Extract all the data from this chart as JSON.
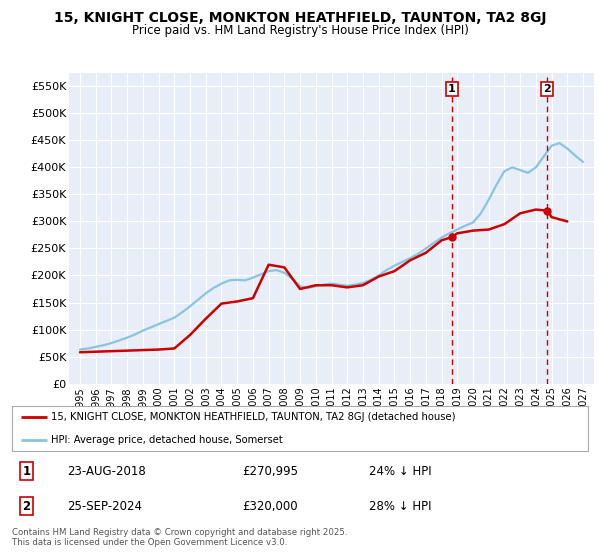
{
  "title": "15, KNIGHT CLOSE, MONKTON HEATHFIELD, TAUNTON, TA2 8GJ",
  "subtitle": "Price paid vs. HM Land Registry's House Price Index (HPI)",
  "ylim": [
    0,
    575000
  ],
  "yticks": [
    0,
    50000,
    100000,
    150000,
    200000,
    250000,
    300000,
    350000,
    400000,
    450000,
    500000,
    550000
  ],
  "ytick_labels": [
    "£0",
    "£50K",
    "£100K",
    "£150K",
    "£200K",
    "£250K",
    "£300K",
    "£350K",
    "£400K",
    "£450K",
    "£500K",
    "£550K"
  ],
  "hpi_color": "#89c4e1",
  "price_color": "#cc0000",
  "vline_color": "#cc0000",
  "background_color": "#ffffff",
  "plot_bg_color": "#e8eef8",
  "grid_color": "#ffffff",
  "legend_entry1": "15, KNIGHT CLOSE, MONKTON HEATHFIELD, TAUNTON, TA2 8GJ (detached house)",
  "legend_entry2": "HPI: Average price, detached house, Somerset",
  "table_row1": [
    "1",
    "23-AUG-2018",
    "£270,995",
    "24% ↓ HPI"
  ],
  "table_row2": [
    "2",
    "25-SEP-2024",
    "£320,000",
    "28% ↓ HPI"
  ],
  "footer": "Contains HM Land Registry data © Crown copyright and database right 2025.\nThis data is licensed under the Open Government Licence v3.0.",
  "hpi_x": [
    1995,
    1995.5,
    1996,
    1996.5,
    1997,
    1997.5,
    1998,
    1998.5,
    1999,
    1999.5,
    2000,
    2000.5,
    2001,
    2001.5,
    2002,
    2002.5,
    2003,
    2003.5,
    2004,
    2004.5,
    2005,
    2005.5,
    2006,
    2006.5,
    2007,
    2007.5,
    2008,
    2008.5,
    2009,
    2009.5,
    2010,
    2010.5,
    2011,
    2011.5,
    2012,
    2012.5,
    2013,
    2013.5,
    2014,
    2014.5,
    2015,
    2015.5,
    2016,
    2016.5,
    2017,
    2017.5,
    2018,
    2018.5,
    2019,
    2019.5,
    2020,
    2020.5,
    2021,
    2021.5,
    2022,
    2022.5,
    2023,
    2023.5,
    2024,
    2024.5,
    2025,
    2025.5,
    2026,
    2026.5,
    2027
  ],
  "hpi_y": [
    63000,
    65000,
    68000,
    71000,
    75000,
    80000,
    85000,
    91000,
    98000,
    104000,
    110000,
    116000,
    122000,
    132000,
    143000,
    155000,
    167000,
    177000,
    185000,
    191000,
    192000,
    191000,
    196000,
    202000,
    208000,
    210000,
    205000,
    194000,
    180000,
    177000,
    180000,
    183000,
    185000,
    183000,
    181000,
    183000,
    186000,
    192000,
    200000,
    210000,
    218000,
    225000,
    232000,
    240000,
    250000,
    260000,
    270000,
    278000,
    285000,
    292000,
    298000,
    315000,
    340000,
    368000,
    393000,
    400000,
    395000,
    390000,
    400000,
    420000,
    440000,
    445000,
    435000,
    422000,
    410000
  ],
  "price_x": [
    1995,
    1996,
    1997,
    1998,
    1999,
    2000,
    2001,
    2002,
    2003,
    2004,
    2005,
    2006,
    2007,
    2008,
    2009,
    2010,
    2011,
    2012,
    2013,
    2014,
    2015,
    2016,
    2017,
    2018.0,
    2018.65,
    2019,
    2020,
    2021,
    2022,
    2023,
    2024.0,
    2024.73,
    2025,
    2026
  ],
  "price_y": [
    58000,
    59000,
    60000,
    61000,
    62000,
    63000,
    65000,
    90000,
    120000,
    148000,
    152000,
    158000,
    220000,
    215000,
    175000,
    182000,
    182000,
    178000,
    182000,
    198000,
    208000,
    228000,
    242000,
    265000,
    270995,
    278000,
    283000,
    285000,
    295000,
    315000,
    322000,
    320000,
    308000,
    300000
  ],
  "marker1_x": 2018.65,
  "marker1_y": 270995,
  "marker2_x": 2024.73,
  "marker2_y": 320000,
  "vline1_x": 2018.65,
  "vline2_x": 2024.73,
  "xlim": [
    1994.3,
    2027.7
  ],
  "xtick_years": [
    1995,
    1996,
    1997,
    1998,
    1999,
    2000,
    2001,
    2002,
    2003,
    2004,
    2005,
    2006,
    2007,
    2008,
    2009,
    2010,
    2011,
    2012,
    2013,
    2014,
    2015,
    2016,
    2017,
    2018,
    2019,
    2020,
    2021,
    2022,
    2023,
    2024,
    2025,
    2026,
    2027
  ]
}
